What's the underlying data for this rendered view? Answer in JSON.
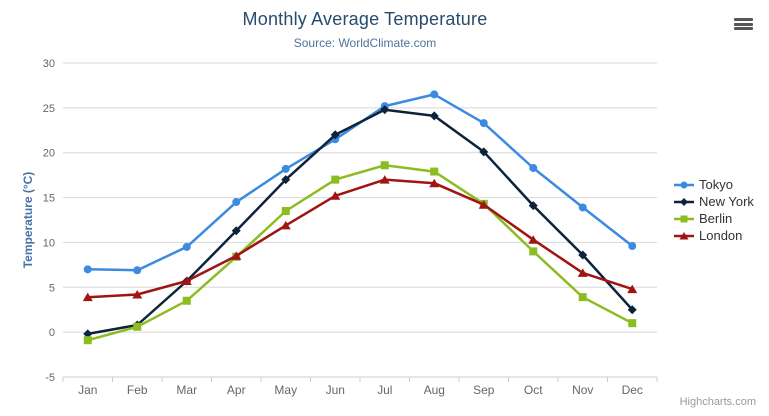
{
  "credits": "Highcharts.com",
  "icons": {
    "export_menu": "hamburger-icon"
  },
  "style_colors": {
    "title": "#274b6d",
    "subtitle": "#4d759e",
    "axis_title": "#4572a7",
    "tick_labels": "#666666",
    "grid_line": "#d8d8d8",
    "axis_line": "#c0d0e0",
    "legend_text": "#333333",
    "credits_text": "#999999"
  },
  "chart_data": {
    "type": "line",
    "title": "Monthly Average Temperature",
    "subtitle": "Source: WorldClimate.com",
    "categories": [
      "Jan",
      "Feb",
      "Mar",
      "Apr",
      "May",
      "Jun",
      "Jul",
      "Aug",
      "Sep",
      "Oct",
      "Nov",
      "Dec"
    ],
    "series": [
      {
        "name": "Tokyo",
        "color": "#3c8be0",
        "marker": "circle",
        "values": [
          7.0,
          6.9,
          9.5,
          14.5,
          18.2,
          21.5,
          25.2,
          26.5,
          23.3,
          18.3,
          13.9,
          9.6
        ]
      },
      {
        "name": "New York",
        "color": "#0d233a",
        "marker": "diamond",
        "values": [
          -0.2,
          0.8,
          5.7,
          11.3,
          17.0,
          22.0,
          24.8,
          24.1,
          20.1,
          14.1,
          8.6,
          2.5
        ]
      },
      {
        "name": "Berlin",
        "color": "#8bbc21",
        "marker": "square",
        "values": [
          -0.9,
          0.6,
          3.5,
          8.4,
          13.5,
          17.0,
          18.6,
          17.9,
          14.3,
          9.0,
          3.9,
          1.0
        ]
      },
      {
        "name": "London",
        "color": "#a01414",
        "marker": "triangle",
        "values": [
          3.9,
          4.2,
          5.7,
          8.5,
          11.9,
          15.2,
          17.0,
          16.6,
          14.2,
          10.3,
          6.6,
          4.8
        ]
      }
    ],
    "xlabel": "",
    "ylabel": "Temperature (°C)",
    "ylim": [
      -5,
      30
    ],
    "ytick_interval": 5,
    "grid": true,
    "legend_position": "right"
  }
}
